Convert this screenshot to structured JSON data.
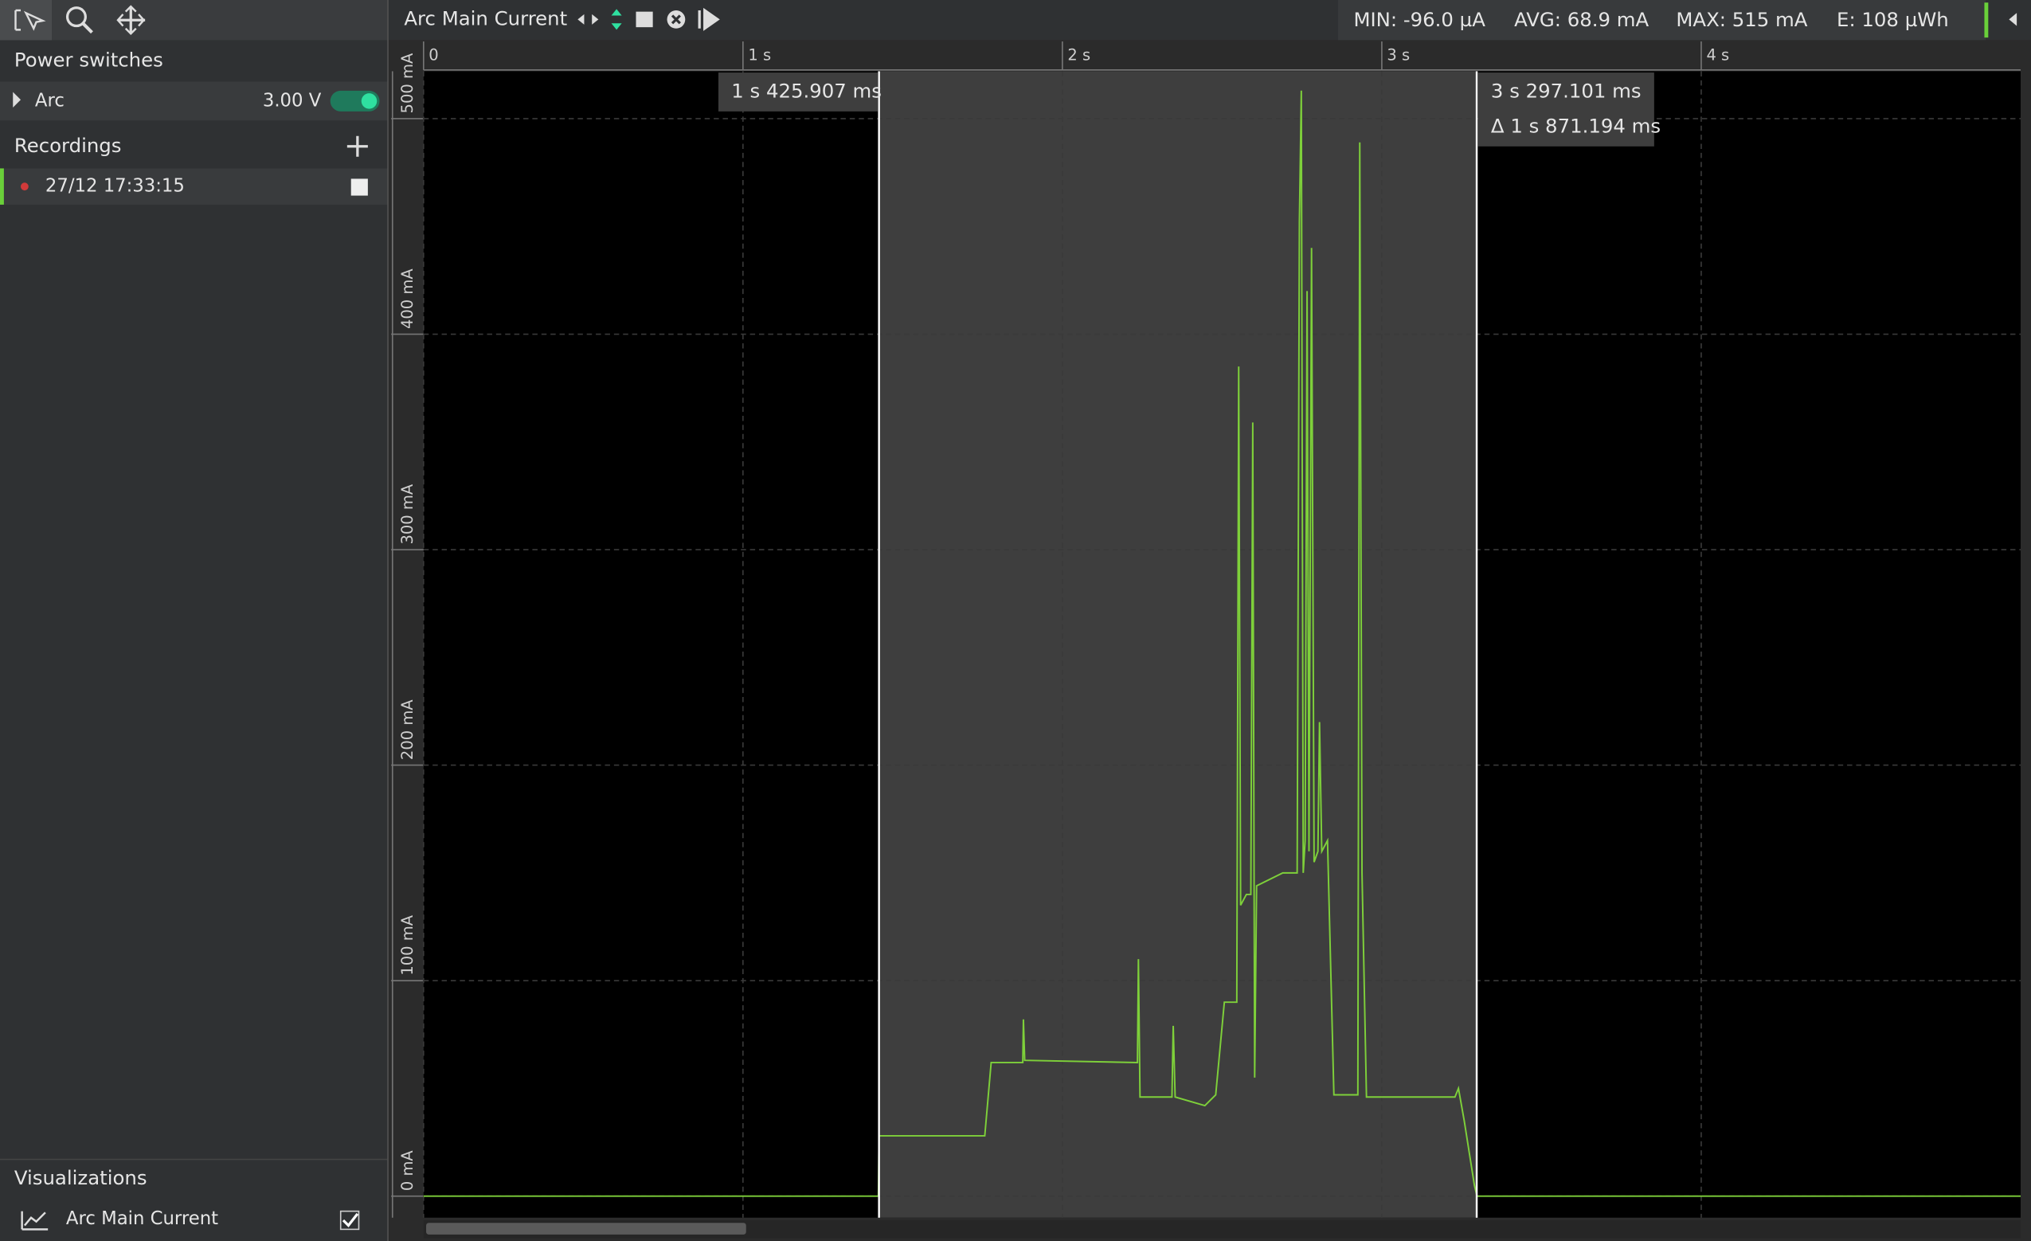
{
  "toolbar": {
    "stats": [
      "MIN: -96.0 µA",
      "AVG: 68.9 mA",
      "MAX: 515 mA",
      "E: 108 µWh"
    ]
  },
  "sidebar": {
    "power_switches": "Power switches",
    "switch_name": "Arc",
    "voltage": "3.00 V",
    "recordings": "Recordings",
    "recording": "27/12 17:33:15",
    "visualizations": "Visualizations"
  },
  "chart_data": {
    "type": "line",
    "x": [
      0,
      1.424,
      1.426,
      1.757,
      1.777,
      1.876,
      1.878,
      1.882,
      2.235,
      2.238,
      2.243,
      2.343,
      2.347,
      2.353,
      2.446,
      2.48,
      2.507,
      2.546,
      2.552,
      2.558,
      2.576,
      2.59,
      2.596,
      2.602,
      2.608,
      2.69,
      2.735,
      2.742,
      2.748,
      2.754,
      2.76,
      2.766,
      2.772,
      2.78,
      2.788,
      2.8,
      2.805,
      2.812,
      2.83,
      2.85,
      2.925,
      2.931,
      2.938,
      2.952,
      3.229,
      3.24,
      3.258,
      3.29,
      3.298,
      5.0
    ],
    "series": [
      {
        "name": "Arc Main Current",
        "color": "#7ed03a",
        "values": [
          0,
          0,
          28,
          28,
          62,
          62,
          82,
          63,
          62,
          110,
          46,
          46,
          79,
          46,
          42,
          47,
          90,
          90,
          385,
          135,
          140,
          140,
          359,
          55,
          144,
          150,
          150,
          452,
          513,
          150,
          165,
          420,
          160,
          440,
          155,
          160,
          220,
          160,
          165,
          47,
          47,
          489,
          150,
          46,
          46,
          50,
          35,
          5,
          0,
          0
        ]
      }
    ],
    "xlim": [
      0,
      5
    ],
    "xticks": [
      0,
      {
        "value": 1,
        "label": "1 s"
      },
      {
        "value": 2,
        "label": "2 s"
      },
      {
        "value": 3,
        "label": "3 s"
      },
      {
        "value": 4,
        "label": "4 s"
      }
    ],
    "ylim": [
      -10,
      522
    ],
    "yticks": [
      {
        "value": 0,
        "label": "0 mA"
      },
      {
        "value": 100,
        "label": "100 mA"
      },
      {
        "value": 200,
        "label": "200 mA"
      },
      {
        "value": 300,
        "label": "300 mA"
      },
      {
        "value": 400,
        "label": "400 mA"
      },
      {
        "value": 500,
        "label": "500 mA"
      }
    ],
    "grid": true,
    "cursors": [
      {
        "value": 1.425907,
        "label": "1 s 425.907 ms"
      },
      {
        "value": 3.297101,
        "label": "3 s 297.101 ms"
      }
    ],
    "delta_label": "Δ 1 s 871.194 ms"
  }
}
